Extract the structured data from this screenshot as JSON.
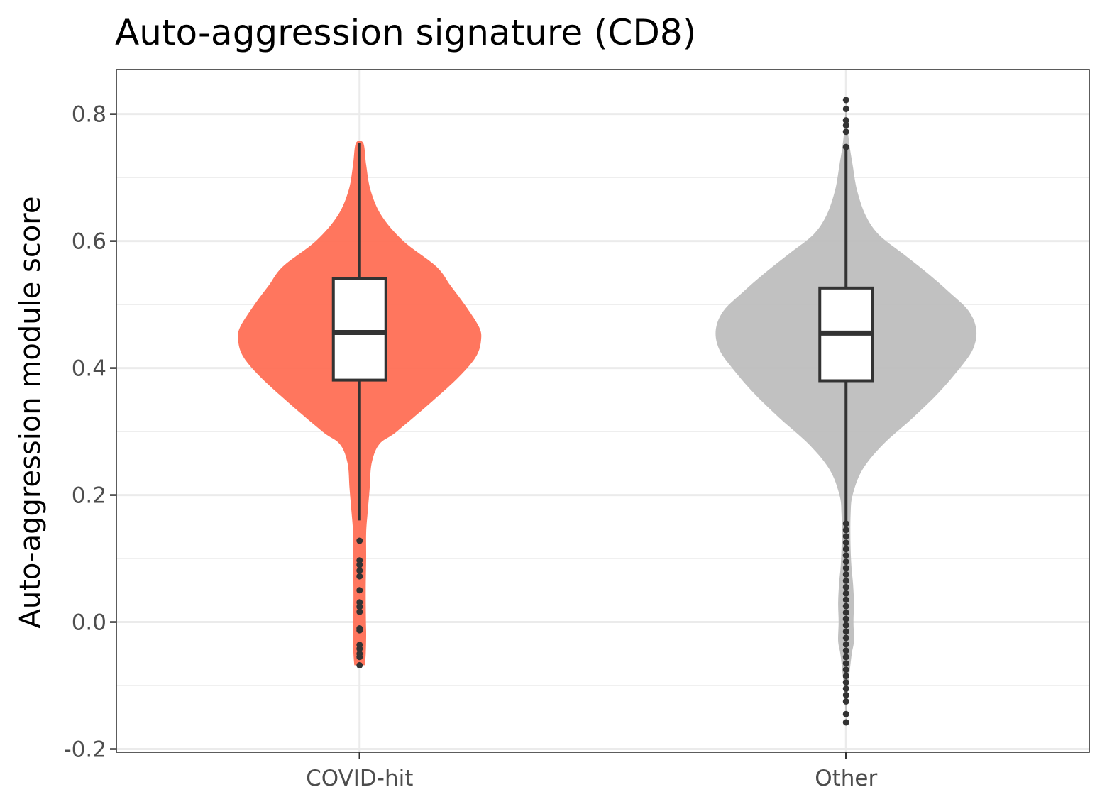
{
  "chart_data": {
    "type": "violin",
    "title": "Auto-aggression signature (CD8)",
    "xlabel": "",
    "ylabel": "Auto-aggression module score",
    "ylim": [
      -0.205,
      0.87
    ],
    "y_ticks": [
      -0.2,
      0.0,
      0.2,
      0.4,
      0.6,
      0.8
    ],
    "y_tick_labels": [
      "-0.2",
      "0.0",
      "0.2",
      "0.4",
      "0.6",
      "0.8"
    ],
    "grid": true,
    "categories": [
      "COVID-hit",
      "Other"
    ],
    "groups": [
      {
        "name": "COVID-hit",
        "color": "#FF6F55",
        "violin": [
          [
            -0.068,
            0.024
          ],
          [
            -0.05,
            0.028
          ],
          [
            -0.02,
            0.03
          ],
          [
            0.0,
            0.029
          ],
          [
            0.05,
            0.028
          ],
          [
            0.1,
            0.03
          ],
          [
            0.14,
            0.03
          ],
          [
            0.17,
            0.036
          ],
          [
            0.21,
            0.046
          ],
          [
            0.25,
            0.055
          ],
          [
            0.28,
            0.09
          ],
          [
            0.3,
            0.17
          ],
          [
            0.35,
            0.34
          ],
          [
            0.39,
            0.465
          ],
          [
            0.42,
            0.535
          ],
          [
            0.445,
            0.555
          ],
          [
            0.465,
            0.545
          ],
          [
            0.5,
            0.48
          ],
          [
            0.53,
            0.415
          ],
          [
            0.56,
            0.35
          ],
          [
            0.6,
            0.2
          ],
          [
            0.64,
            0.1
          ],
          [
            0.68,
            0.05
          ],
          [
            0.72,
            0.03
          ],
          [
            0.754,
            0.017
          ]
        ],
        "box": {
          "q1": 0.381,
          "median": 0.456,
          "q3": 0.541,
          "whisker_low": 0.16,
          "whisker_high": 0.754
        },
        "outliers": [
          0.128,
          0.097,
          0.09,
          0.081,
          0.072,
          0.05,
          0.031,
          0.024,
          0.016,
          -0.01,
          -0.013,
          -0.036,
          -0.042,
          -0.05,
          -0.055,
          -0.068
        ]
      },
      {
        "name": "Other",
        "color": "#BEBEBE",
        "violin": [
          [
            -0.16,
            0.001
          ],
          [
            -0.14,
            0.003
          ],
          [
            -0.12,
            0.006
          ],
          [
            -0.1,
            0.01
          ],
          [
            -0.08,
            0.016
          ],
          [
            -0.05,
            0.026
          ],
          [
            -0.03,
            0.036
          ],
          [
            0.0,
            0.034
          ],
          [
            0.03,
            0.036
          ],
          [
            0.06,
            0.032
          ],
          [
            0.09,
            0.024
          ],
          [
            0.13,
            0.02
          ],
          [
            0.17,
            0.021
          ],
          [
            0.2,
            0.03
          ],
          [
            0.24,
            0.075
          ],
          [
            0.28,
            0.17
          ],
          [
            0.32,
            0.3
          ],
          [
            0.36,
            0.42
          ],
          [
            0.4,
            0.52
          ],
          [
            0.43,
            0.58
          ],
          [
            0.46,
            0.595
          ],
          [
            0.49,
            0.56
          ],
          [
            0.52,
            0.47
          ],
          [
            0.55,
            0.37
          ],
          [
            0.58,
            0.26
          ],
          [
            0.61,
            0.15
          ],
          [
            0.64,
            0.09
          ],
          [
            0.68,
            0.05
          ],
          [
            0.72,
            0.03
          ],
          [
            0.75,
            0.016
          ],
          [
            0.78,
            0.007
          ],
          [
            0.82,
            0.001
          ]
        ],
        "box": {
          "q1": 0.38,
          "median": 0.455,
          "q3": 0.526,
          "whisker_low": 0.158,
          "whisker_high": 0.748
        },
        "outliers": [
          0.822,
          0.808,
          0.79,
          0.782,
          0.772,
          0.748,
          0.155,
          0.145,
          0.135,
          0.125,
          0.115,
          0.105,
          0.095,
          0.085,
          0.075,
          0.065,
          0.055,
          0.045,
          0.035,
          0.025,
          0.015,
          0.005,
          -0.005,
          -0.015,
          -0.025,
          -0.035,
          -0.045,
          -0.055,
          -0.065,
          -0.075,
          -0.085,
          -0.095,
          -0.105,
          -0.115,
          -0.125,
          -0.145,
          -0.158
        ]
      }
    ]
  }
}
